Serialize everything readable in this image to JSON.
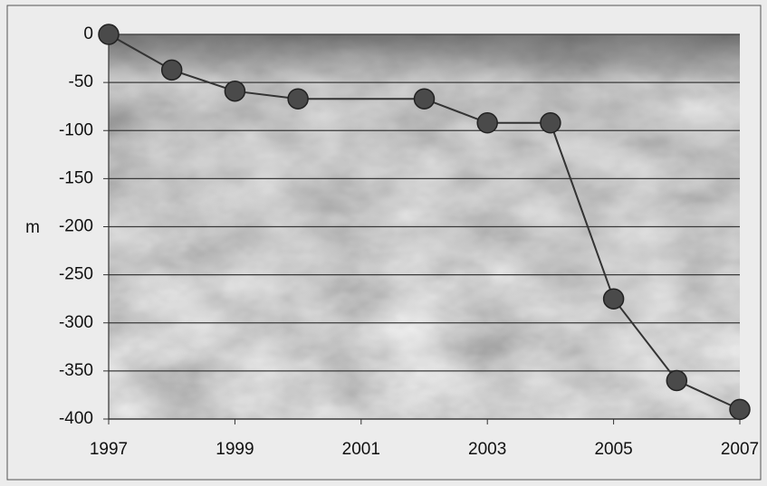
{
  "chart_data": {
    "type": "line",
    "y_label": "m",
    "x": [
      1997,
      1998,
      1999,
      2000,
      2002,
      2003,
      2004,
      2005,
      2006,
      2007
    ],
    "values": [
      0,
      -37,
      -59,
      -67,
      -67,
      -92,
      -92,
      -275,
      -360,
      -390
    ],
    "color": "#333333",
    "marker_color": "#4a4a4a",
    "xlim": [
      1997,
      2007
    ],
    "xticks": [
      1997,
      1999,
      2001,
      2003,
      2005,
      2007
    ],
    "ylim": [
      -400,
      0
    ],
    "yticks": [
      0,
      -50,
      -100,
      -150,
      -200,
      -250,
      -300,
      -350,
      -400
    ],
    "grid": true
  }
}
